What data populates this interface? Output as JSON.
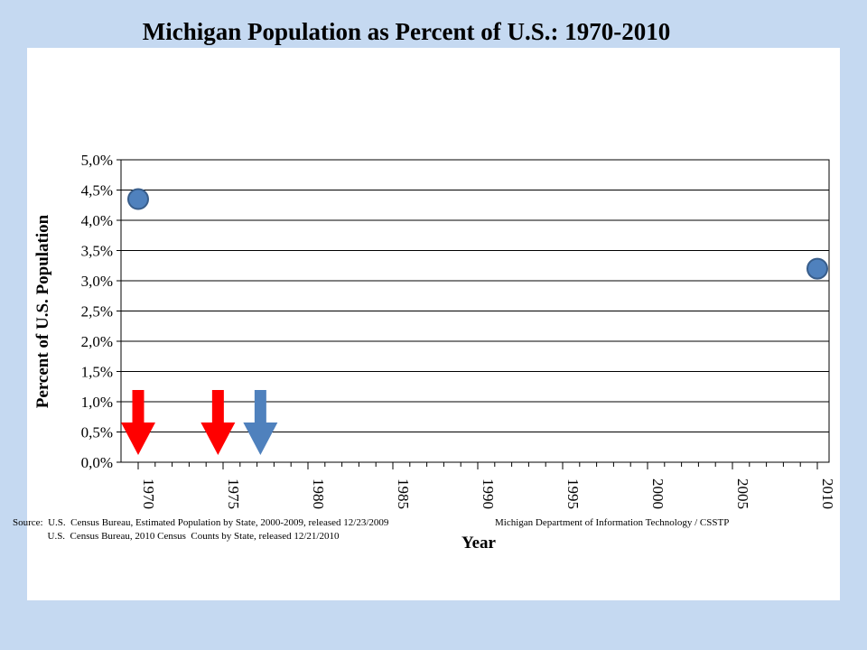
{
  "chart_data": {
    "type": "scatter",
    "title": "Michigan Population as Percent of U.S.: 1970-2010",
    "xlabel": "Year",
    "ylabel": "Percent of U.S.  Population",
    "xlim": [
      1970,
      2010
    ],
    "ylim": [
      0,
      5
    ],
    "x_ticks": [
      "1970",
      "1975",
      "1980",
      "1985",
      "1990",
      "1995",
      "2000",
      "2005",
      "2010"
    ],
    "y_ticks": [
      "0,0%",
      "0,5%",
      "1,0%",
      "1,5%",
      "2,0%",
      "2,5%",
      "3,0%",
      "3,5%",
      "4,0%",
      "4,5%",
      "5,0%"
    ],
    "grid": true,
    "series": [
      {
        "points": [
          {
            "x": 1970,
            "y": 4.35
          },
          {
            "x": 2010,
            "y": 3.2
          }
        ],
        "color": "#4f81bd"
      }
    ],
    "annotations": [
      {
        "kind": "down-arrow",
        "x": 1970,
        "color": "#ff0000"
      },
      {
        "kind": "down-arrow",
        "x": 1974.7,
        "color": "#ff0000"
      },
      {
        "kind": "down-arrow",
        "x": 1977.2,
        "color": "#4f81bd"
      }
    ]
  },
  "source": {
    "line1": "Source:  U.S.  Census Bureau, Estimated Population by State, 2000-2009, released 12/23/2009",
    "line2": "              U.S.  Census Bureau, 2010 Census  Counts by State, released 12/21/2010",
    "department": "Michigan Department of Information Technology / CSSTP"
  }
}
